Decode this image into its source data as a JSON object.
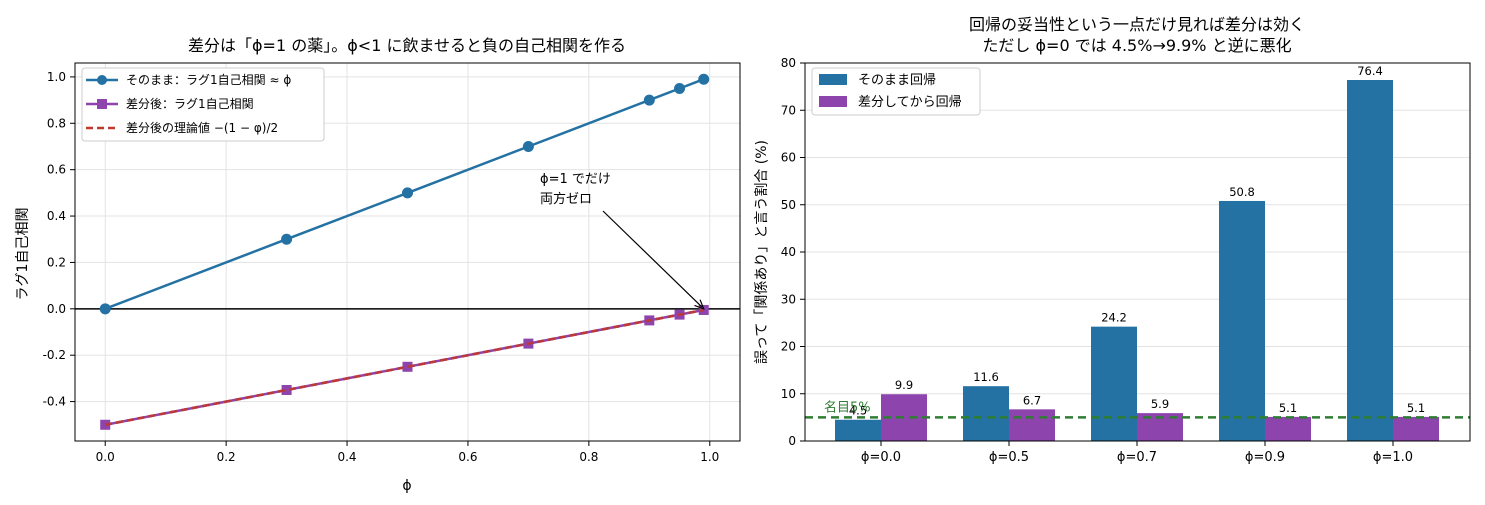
{
  "chart_data": [
    {
      "type": "line",
      "title": "差分は「ϕ=1 の薬」。ϕ<1 に飲ませると負の自己相関を作る",
      "xlabel": "ϕ",
      "ylabel": "ラグ1自己相関",
      "xlim": [
        -0.05,
        1.05
      ],
      "ylim": [
        -0.57,
        1.06
      ],
      "xticks": [
        0.0,
        0.2,
        0.4,
        0.6,
        0.8,
        1.0
      ],
      "xtick_labels": [
        "0.0",
        "0.2",
        "0.4",
        "0.6",
        "0.8",
        "1.0"
      ],
      "yticks": [
        -0.4,
        -0.2,
        0.0,
        0.2,
        0.4,
        0.6,
        0.8,
        1.0
      ],
      "ytick_labels": [
        "-0.4",
        "-0.2",
        "0.0",
        "0.2",
        "0.4",
        "0.6",
        "0.8",
        "1.0"
      ],
      "grid": true,
      "legend_position": "top-left",
      "hline": 0,
      "series": [
        {
          "name": "そのまま：ラグ1自己相関 ≈ ϕ",
          "color": "#2471a3",
          "marker": "circle",
          "style": "solid",
          "x": [
            0.0,
            0.3,
            0.5,
            0.7,
            0.9,
            0.95,
            0.99
          ],
          "y": [
            0.0,
            0.3,
            0.5,
            0.7,
            0.9,
            0.95,
            0.99
          ]
        },
        {
          "name": "差分後：ラグ1自己相関",
          "color": "#8e44ad",
          "marker": "square",
          "style": "solid",
          "x": [
            0.0,
            0.3,
            0.5,
            0.7,
            0.9,
            0.95,
            0.99
          ],
          "y": [
            -0.5,
            -0.35,
            -0.25,
            -0.15,
            -0.05,
            -0.025,
            -0.005
          ]
        },
        {
          "name": "差分後の理論値 −(1 − φ)/2",
          "color": "#c0392b",
          "marker": "none",
          "style": "dashed",
          "x": [
            0.0,
            0.99
          ],
          "y": [
            -0.5,
            -0.005
          ]
        }
      ],
      "annotation": {
        "lines": [
          "ϕ=1 でだけ",
          "両方ゼロ"
        ],
        "text_at": [
          0.72,
          0.5
        ],
        "arrow_to": [
          0.99,
          0.0
        ]
      }
    },
    {
      "type": "bar",
      "title_lines": [
        "回帰の妥当性という一点だけ見れば差分は効く",
        "ただし ϕ=0 では 4.5%→9.9% と逆に悪化"
      ],
      "xlabel": "",
      "ylabel": "誤って「関係あり」と言う割合 (%)",
      "ylim": [
        0,
        80
      ],
      "yticks": [
        0,
        10,
        20,
        30,
        40,
        50,
        60,
        70,
        80
      ],
      "categories": [
        "ϕ=0.0",
        "ϕ=0.5",
        "ϕ=0.7",
        "ϕ=0.9",
        "ϕ=1.0"
      ],
      "grid": true,
      "legend_position": "top-left",
      "series": [
        {
          "name": "そのまま回帰",
          "color": "#2471a3",
          "values": [
            4.5,
            11.6,
            24.2,
            50.8,
            76.4
          ]
        },
        {
          "name": "差分してから回帰",
          "color": "#8e44ad",
          "values": [
            9.9,
            6.7,
            5.9,
            5.1,
            5.1
          ]
        }
      ],
      "value_labels": [
        [
          "4.5",
          "11.6",
          "24.2",
          "50.8",
          "76.4"
        ],
        [
          "9.9",
          "6.7",
          "5.9",
          "5.1",
          "5.1"
        ]
      ],
      "reference_line": {
        "value": 5,
        "label": "名目5%",
        "color": "#2e7d32",
        "style": "dashed"
      }
    }
  ]
}
